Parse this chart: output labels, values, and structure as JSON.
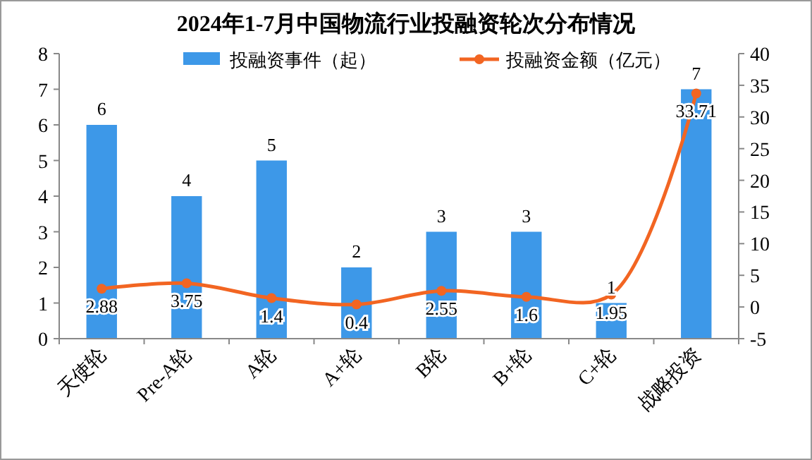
{
  "chart_data": {
    "type": "bar",
    "title": "2024年1-7月中国物流行业投融资轮次分布情况",
    "categories": [
      "天使轮",
      "Pre-A轮",
      "A轮",
      "A+轮",
      "B轮",
      "B+轮",
      "C+轮",
      "战略投资"
    ],
    "series": [
      {
        "name": "投融资事件（起）",
        "color": "#3d98e8",
        "values": [
          6,
          4,
          5,
          2,
          3,
          3,
          1,
          7
        ]
      },
      {
        "name": "投融资金额（亿元）",
        "type": "line",
        "axis": "y2",
        "color": "#f26522",
        "values": [
          2.88,
          3.75,
          1.4,
          0.4,
          2.55,
          1.6,
          1.95,
          33.71
        ]
      }
    ],
    "ylim": [
      0,
      8
    ],
    "yticks": [
      0,
      1,
      2,
      3,
      4,
      5,
      6,
      7,
      8
    ],
    "y2lim": [
      -5,
      40
    ],
    "y2ticks": [
      -5,
      0,
      5,
      10,
      15,
      20,
      25,
      30,
      35,
      40
    ],
    "data_labels": true,
    "legend": "top",
    "grid": false,
    "marker": "circle"
  }
}
